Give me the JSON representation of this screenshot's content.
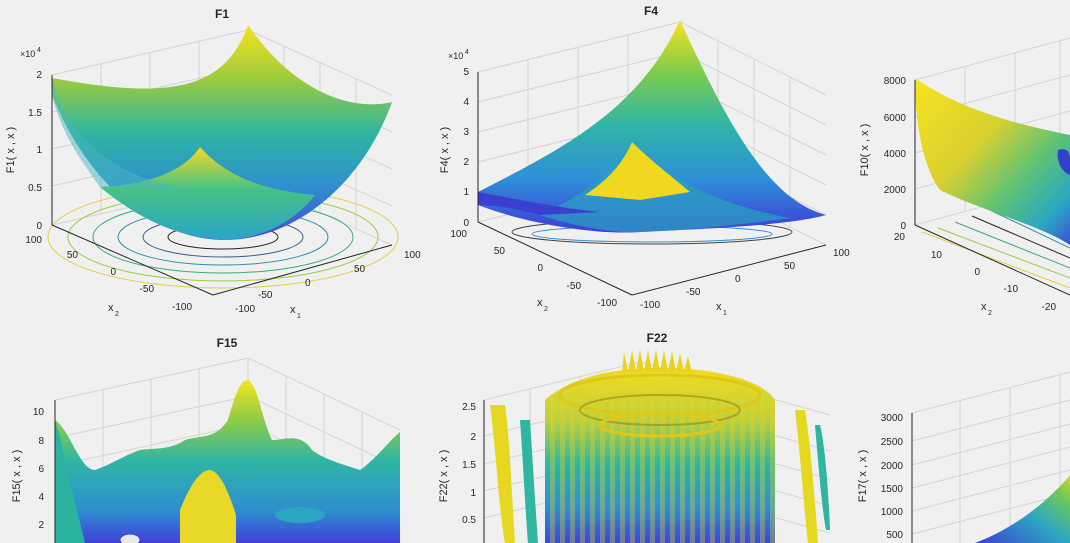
{
  "chart_data": [
    {
      "id": "F1",
      "type": "surface3d",
      "title": "F1",
      "xlabel": "x",
      "xlabel_sub": "1",
      "ylabel": "x",
      "ylabel_sub": "2",
      "zlabel": "F1( x , x )",
      "zlabel_sub1": "1",
      "zlabel_sub2": "2",
      "x_ticks": [
        "-100",
        "-50",
        "0",
        "50",
        "100"
      ],
      "y_ticks": [
        "-100",
        "-50",
        "0",
        "50",
        "100"
      ],
      "z_ticks": [
        "0",
        "0.5",
        "1",
        "1.5",
        "2"
      ],
      "z_exponent": "×10",
      "z_exponent_power": "4",
      "xlim": [
        -100,
        100
      ],
      "ylim": [
        -100,
        100
      ],
      "zlim": [
        0,
        20000
      ],
      "formula": "x1^2 + x2^2"
    },
    {
      "id": "F4",
      "type": "surface3d",
      "title": "F4",
      "xlabel": "x",
      "xlabel_sub": "1",
      "ylabel": "x",
      "ylabel_sub": "2",
      "zlabel": "F4( x , x )",
      "zlabel_sub1": "1",
      "zlabel_sub2": "2",
      "x_ticks": [
        "-100",
        "-50",
        "0",
        "50",
        "100"
      ],
      "y_ticks": [
        "-50",
        "0",
        "50",
        "100"
      ],
      "z_ticks": [
        "0",
        "1",
        "2",
        "3",
        "4",
        "5"
      ],
      "z_exponent": "×10",
      "z_exponent_power": "4",
      "xlim": [
        -100,
        100
      ],
      "ylim": [
        -100,
        100
      ],
      "zlim": [
        0,
        50000
      ]
    },
    {
      "id": "F10",
      "type": "surface3d",
      "title": "",
      "xlabel": "",
      "ylabel": "x",
      "ylabel_sub": "2",
      "zlabel": "F10( x , x )",
      "zlabel_sub1": "1",
      "zlabel_sub2": "2",
      "y_ticks": [
        "-20",
        "-10",
        "0",
        "10",
        "20"
      ],
      "z_ticks": [
        "0",
        "2000",
        "4000",
        "6000",
        "8000"
      ],
      "ylim": [
        -20,
        20
      ],
      "zlim": [
        0,
        8000
      ]
    },
    {
      "id": "F15",
      "type": "surface3d",
      "title": "F15",
      "zlabel": "F15( x , x )",
      "zlabel_sub1": "1",
      "zlabel_sub2": "2",
      "z_ticks": [
        "2",
        "4",
        "6",
        "8",
        "10"
      ],
      "zlim": [
        0,
        10
      ]
    },
    {
      "id": "F22",
      "type": "surface3d",
      "title": "F22",
      "zlabel": "F22( x , x )",
      "zlabel_sub1": "1",
      "zlabel_sub2": "2",
      "z_ticks": [
        "0.5",
        "1",
        "1.5",
        "2",
        "2.5"
      ],
      "zlim": [
        0,
        2.5
      ]
    },
    {
      "id": "F17",
      "type": "surface3d",
      "title": "",
      "zlabel": "F17( x , x )",
      "zlabel_sub1": "1",
      "zlabel_sub2": "2",
      "z_ticks": [
        "500",
        "1000",
        "1500",
        "2000",
        "2500",
        "3000"
      ],
      "zlim": [
        0,
        3000
      ]
    }
  ],
  "colors": {
    "background": "#f0f0f0",
    "text": "#262626",
    "grid": "#d4d4d4",
    "axis": "#262626"
  }
}
